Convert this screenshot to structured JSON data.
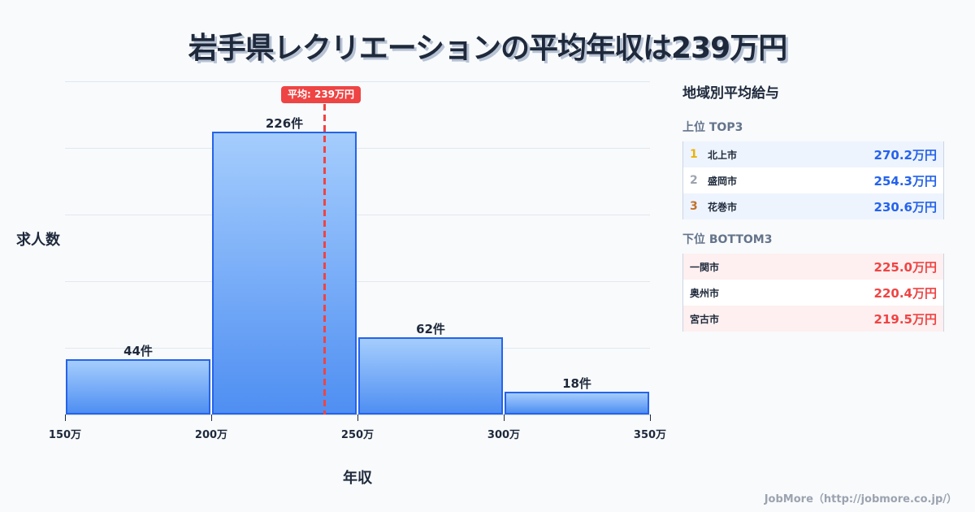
{
  "title": "岩手県レクリエーションの平均年収は239万円",
  "chart_data": {
    "type": "bar",
    "title": "岩手県レクリエーションの平均年収は239万円",
    "xlabel": "年収",
    "ylabel": "求人数",
    "categories": [
      "150万-200万",
      "200万-250万",
      "250万-300万",
      "300万-350万"
    ],
    "values": [
      44,
      226,
      62,
      18
    ],
    "value_labels": [
      "44件",
      "226件",
      "62件",
      "18件"
    ],
    "x_ticks": [
      "150万",
      "200万",
      "250万",
      "300万",
      "350万"
    ],
    "xlim": [
      150,
      350
    ],
    "ylim": [
      0,
      250
    ],
    "grid": true,
    "mean": 239,
    "mean_label": "平均: 239万円"
  },
  "panel": {
    "title": "地域別平均給与",
    "top_title": "上位 TOP3",
    "top": [
      {
        "rank": "1",
        "name": "北上市",
        "value": "270.2万円",
        "rank_color": "#eab308"
      },
      {
        "rank": "2",
        "name": "盛岡市",
        "value": "254.3万円",
        "rank_color": "#9ca3af"
      },
      {
        "rank": "3",
        "name": "花巻市",
        "value": "230.6万円",
        "rank_color": "#c2712b"
      }
    ],
    "bottom_title": "下位 BOTTOM3",
    "bottom": [
      {
        "name": "一関市",
        "value": "225.0万円"
      },
      {
        "name": "奥州市",
        "value": "220.4万円"
      },
      {
        "name": "宮古市",
        "value": "219.5万円"
      }
    ]
  },
  "footer": "JobMore（http://jobmore.co.jp/）"
}
